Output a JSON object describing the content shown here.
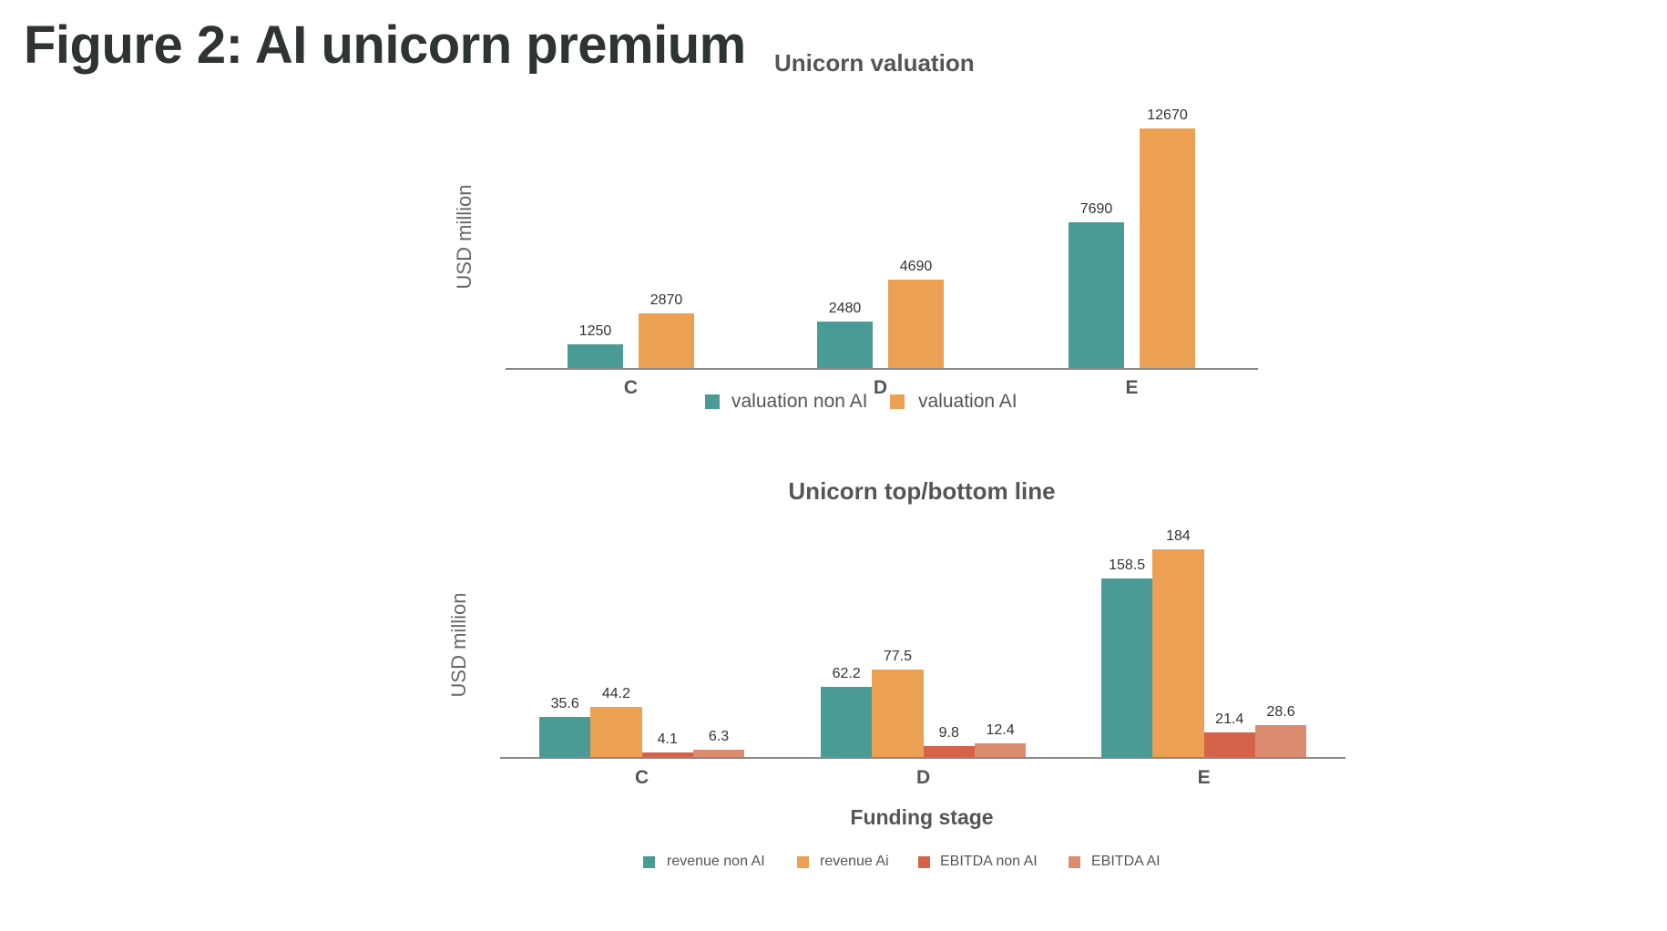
{
  "title": "Figure 2: AI unicorn premium",
  "colors": {
    "teal": "#4a9a95",
    "orange": "#eca054",
    "red": "#d4634a",
    "salmon": "#dc8c6e"
  },
  "chart_data": [
    {
      "type": "bar",
      "title": "Unicorn valuation",
      "ylabel": "USD  million",
      "xlabel": "",
      "categories": [
        "C",
        "D",
        "E"
      ],
      "series": [
        {
          "name": "valuation non AI",
          "color": "#4a9a95",
          "values": [
            1250,
            2480,
            7690
          ]
        },
        {
          "name": "valuation AI",
          "color": "#eca054",
          "values": [
            2870,
            4690,
            12670
          ]
        }
      ],
      "ylim": [
        0,
        12670
      ],
      "grid": false,
      "legend": "bottom"
    },
    {
      "type": "bar",
      "title": "Unicorn top/bottom line",
      "ylabel": "USD million",
      "xlabel": "Funding stage",
      "categories": [
        "C",
        "D",
        "E"
      ],
      "series": [
        {
          "name": "revenue non AI",
          "color": "#4a9a95",
          "values": [
            35.6,
            62.2,
            158.5
          ]
        },
        {
          "name": "revenue Ai",
          "color": "#eca054",
          "values": [
            44.2,
            77.5,
            184
          ]
        },
        {
          "name": "EBITDA non AI",
          "color": "#d4634a",
          "values": [
            4.1,
            9.8,
            21.4
          ]
        },
        {
          "name": "EBITDA AI",
          "color": "#dc8c6e",
          "values": [
            6.3,
            12.4,
            28.6
          ]
        }
      ],
      "ylim": [
        0,
        184
      ],
      "grid": false,
      "legend": "bottom"
    }
  ]
}
